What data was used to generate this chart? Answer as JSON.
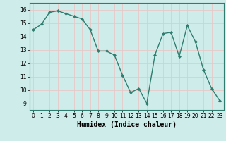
{
  "x": [
    0,
    1,
    2,
    3,
    4,
    5,
    6,
    7,
    8,
    9,
    10,
    11,
    12,
    13,
    14,
    15,
    16,
    17,
    18,
    19,
    20,
    21,
    22,
    23
  ],
  "y": [
    14.5,
    14.9,
    15.8,
    15.9,
    15.7,
    15.5,
    15.3,
    14.5,
    12.9,
    12.9,
    12.6,
    11.1,
    9.8,
    10.1,
    9.0,
    12.6,
    14.2,
    14.3,
    12.5,
    14.8,
    13.6,
    11.5,
    10.1,
    9.2
  ],
  "line_color": "#2e7d6e",
  "marker": "D",
  "marker_size": 2.0,
  "bg_color": "#ceecea",
  "grid_color": "#e8c8c8",
  "xlabel": "Humidex (Indice chaleur)",
  "xlim": [
    -0.5,
    23.5
  ],
  "ylim": [
    8.5,
    16.5
  ],
  "yticks": [
    9,
    10,
    11,
    12,
    13,
    14,
    15,
    16
  ],
  "xticks": [
    0,
    1,
    2,
    3,
    4,
    5,
    6,
    7,
    8,
    9,
    10,
    11,
    12,
    13,
    14,
    15,
    16,
    17,
    18,
    19,
    20,
    21,
    22,
    23
  ],
  "tick_fontsize": 5.5,
  "label_fontsize": 7,
  "line_width": 1.0,
  "spine_color": "#2e7d6e"
}
